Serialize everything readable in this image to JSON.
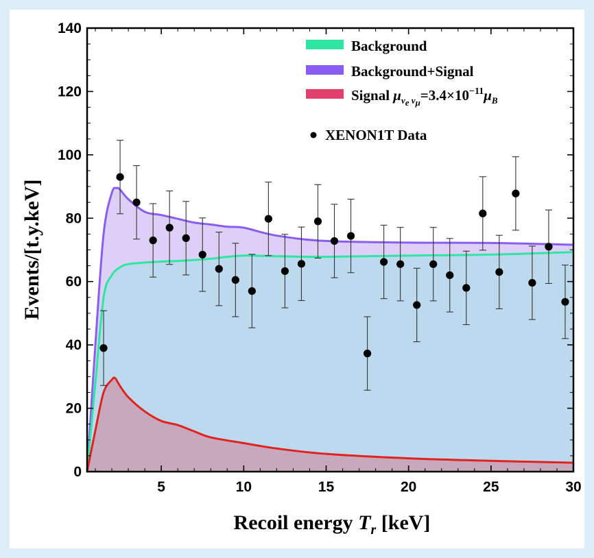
{
  "chart_data": {
    "type": "area",
    "xlabel": "Recoil energy",
    "xlabel_symbol": "T",
    "xlabel_symbol_sub": "r",
    "xlabel_unit": "[keV]",
    "ylabel": "Events/[t.y.keV]",
    "xlim": [
      0.5,
      30
    ],
    "ylim": [
      0,
      140
    ],
    "xticks": [
      5,
      10,
      15,
      20,
      25,
      30
    ],
    "yticks": [
      0,
      20,
      40,
      60,
      80,
      100,
      120,
      140
    ],
    "grid": false,
    "legend_position": "top-right",
    "colors": {
      "background_line": "#2ee6a2",
      "background_fill": "#bcd9ee",
      "signal_total_line": "#8a5cf0",
      "signal_total_fill": "#ddd0f7",
      "signal_line": "#e0231f",
      "signal_fill": "#c8a8bc",
      "data_point": "#000000"
    },
    "series": [
      {
        "name": "Background",
        "x": [
          0.5,
          1.0,
          1.5,
          2.0,
          2.5,
          3.0,
          4.0,
          5.0,
          6.0,
          7.0,
          8.0,
          9.0,
          10.0,
          12.0,
          15.0,
          20.0,
          25.0,
          30.0
        ],
        "values": [
          0,
          28,
          55,
          62,
          64.5,
          65.5,
          66,
          66.3,
          66.5,
          66.8,
          67.2,
          67.8,
          68.2,
          68.0,
          67.8,
          68.2,
          68.5,
          69.3
        ]
      },
      {
        "name": "Background+Signal",
        "x": [
          0.5,
          1.0,
          1.5,
          2.0,
          2.3,
          2.5,
          3.0,
          4.0,
          5.0,
          6.0,
          7.0,
          8.0,
          9.0,
          10.0,
          12.0,
          15.0,
          20.0,
          25.0,
          30.0
        ],
        "values": [
          0,
          40,
          75,
          88,
          89.5,
          89,
          86,
          82,
          81,
          79.8,
          78.6,
          78.0,
          77.3,
          77.0,
          74.5,
          72.8,
          72.3,
          72.2,
          71.6
        ]
      },
      {
        "name": "Signal",
        "x": [
          0.5,
          1.0,
          1.5,
          2.0,
          2.2,
          2.5,
          3.0,
          4.0,
          5.0,
          6.0,
          7.0,
          8.0,
          10.0,
          12.0,
          15.0,
          20.0,
          25.0,
          30.0
        ],
        "values": [
          0,
          13,
          25,
          29,
          29.5,
          27,
          23.5,
          19,
          16,
          14.7,
          12.7,
          10.8,
          9.0,
          7.3,
          5.6,
          4.2,
          3.4,
          2.8
        ]
      }
    ],
    "data_points": {
      "name": "XENON1T Data",
      "x": [
        1.5,
        2.5,
        3.5,
        4.5,
        5.5,
        6.5,
        7.5,
        8.5,
        9.5,
        10.5,
        11.5,
        12.5,
        13.5,
        14.5,
        15.5,
        16.5,
        17.5,
        18.5,
        19.5,
        20.5,
        21.5,
        22.5,
        23.5,
        24.5,
        25.5,
        26.5,
        27.5,
        28.5,
        29.5
      ],
      "y": [
        39,
        93,
        85,
        73,
        77,
        73.7,
        68.5,
        64,
        60.5,
        57,
        79.8,
        63.3,
        65.6,
        79,
        72.8,
        74.4,
        37.3,
        66.2,
        65.5,
        52.6,
        65.5,
        62,
        58,
        81.5,
        63,
        87.8,
        59.6,
        71,
        53.6
      ],
      "err": [
        11.8,
        11.6,
        11.6,
        11.6,
        11.6,
        11.6,
        11.6,
        11.6,
        11.6,
        11.6,
        11.6,
        11.6,
        11.6,
        11.6,
        11.6,
        11.6,
        11.6,
        11.6,
        11.6,
        11.6,
        11.6,
        11.6,
        11.6,
        11.6,
        11.6,
        11.6,
        11.6,
        11.6,
        11.6
      ]
    },
    "legend": [
      {
        "label": "Background",
        "kind": "swatch",
        "color": "#2ee6a2"
      },
      {
        "label": "Background+Signal",
        "kind": "swatch",
        "color": "#8a5cf0"
      },
      {
        "label": "Signal",
        "kind": "swatch",
        "color": "#e0406a",
        "formula": {
          "mu": "μ",
          "sub1": "ν",
          "sub1sub": "e",
          "sub2": "ν",
          "sub2sub": "μ",
          "value": "=3.4×10",
          "exp": "−11",
          "unit": "μ",
          "unitsub": "B"
        }
      },
      {
        "label": "XENON1T Data",
        "kind": "dot",
        "color": "#000000"
      }
    ]
  }
}
